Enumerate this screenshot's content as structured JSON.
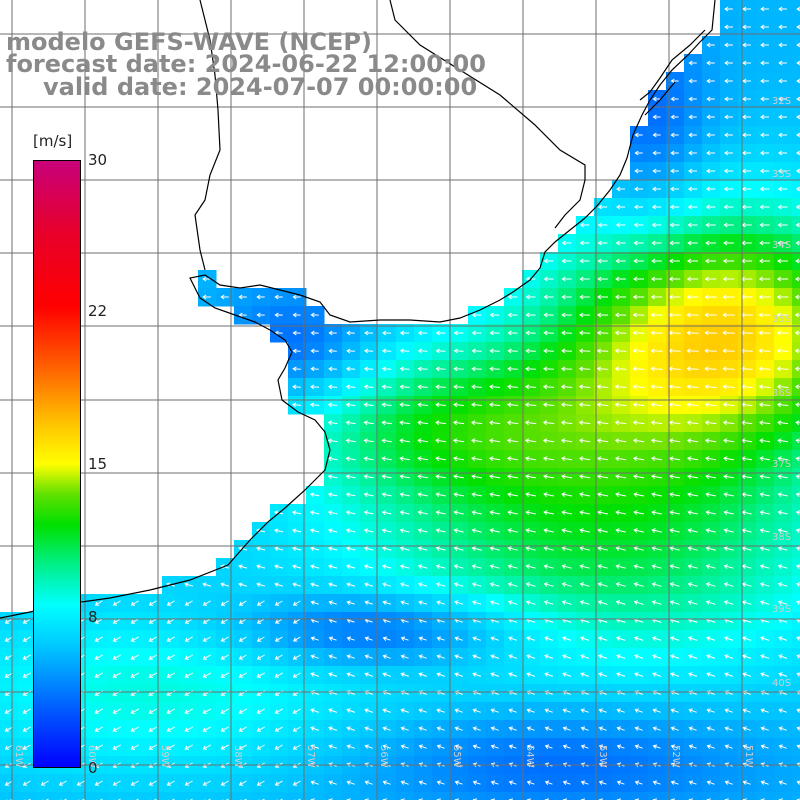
{
  "header": {
    "line1": "modelo GEFS-WAVE (NCEP)",
    "line2": "forecast date: 2024-06-22 12:00:00",
    "line3": "valid date: 2024-07-07 00:00:00"
  },
  "colorbar": {
    "unit": "[m/s]",
    "min": 0,
    "max": 30,
    "ticks": [
      "30",
      "22",
      "15",
      "8",
      "0"
    ],
    "colors": [
      "#0000ff",
      "#00ffff",
      "#00e000",
      "#ffff00",
      "#ff0000",
      "#c8007a"
    ]
  },
  "lat_labels": [
    "32S",
    "33S",
    "34S",
    "35S",
    "36S",
    "37S",
    "38S",
    "39S",
    "40S"
  ],
  "lon_labels": [
    "61W",
    "60W",
    "59W",
    "58W",
    "57W",
    "56W",
    "55W",
    "54W",
    "53W",
    "52W",
    "51W"
  ],
  "map": {
    "region": "Rio de la Plata / Uruguay / southern Brazil coast",
    "field": "wind speed",
    "range": {
      "lon": [
        -61.5,
        -50.5
      ],
      "lat": [
        -31.0,
        -41.5
      ]
    },
    "line_color": "#000000",
    "arrow_color": "#ffffff"
  }
}
